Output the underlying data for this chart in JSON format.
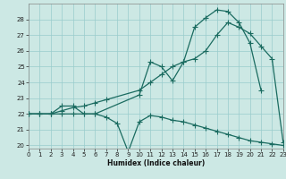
{
  "title": "",
  "xlabel": "Humidex (Indice chaleur)",
  "bg_color": "#cce8e4",
  "line_color": "#1a6b60",
  "grid_color": "#99cccc",
  "line1_x": [
    0,
    1,
    2,
    3,
    4,
    5,
    6,
    10,
    11,
    12,
    13,
    14,
    15,
    16,
    17,
    18,
    19,
    20,
    21
  ],
  "line1_y": [
    22,
    22,
    22,
    22.5,
    22.5,
    22,
    22,
    23.2,
    25.3,
    25.0,
    24.1,
    25.3,
    27.5,
    28.1,
    28.6,
    28.5,
    27.8,
    26.5,
    23.5
  ],
  "line2_x": [
    0,
    1,
    2,
    3,
    4,
    5,
    6,
    7,
    10,
    11,
    12,
    13,
    14,
    15,
    16,
    17,
    18,
    19,
    20,
    21,
    22,
    23
  ],
  "line2_y": [
    22,
    22,
    22,
    22.2,
    22.4,
    22.5,
    22.7,
    22.9,
    23.5,
    24.0,
    24.5,
    25.0,
    25.3,
    25.5,
    26.0,
    27.0,
    27.8,
    27.5,
    27.1,
    26.3,
    25.5,
    20.2
  ],
  "line3_x": [
    0,
    1,
    2,
    3,
    4,
    5,
    6,
    7,
    8,
    9,
    10,
    11,
    12,
    13,
    14,
    15,
    16,
    17,
    18,
    19,
    20,
    21,
    22,
    23
  ],
  "line3_y": [
    22,
    22,
    22,
    22,
    22,
    22,
    22,
    21.8,
    21.4,
    19.6,
    21.5,
    21.9,
    21.8,
    21.6,
    21.5,
    21.3,
    21.1,
    20.9,
    20.7,
    20.5,
    20.3,
    20.2,
    20.1,
    20.0
  ],
  "xlim": [
    0,
    23
  ],
  "ylim": [
    19.8,
    29.0
  ],
  "yticks": [
    20,
    21,
    22,
    23,
    24,
    25,
    26,
    27,
    28
  ],
  "xticks": [
    0,
    1,
    2,
    3,
    4,
    5,
    6,
    7,
    8,
    9,
    10,
    11,
    12,
    13,
    14,
    15,
    16,
    17,
    18,
    19,
    20,
    21,
    22,
    23
  ]
}
